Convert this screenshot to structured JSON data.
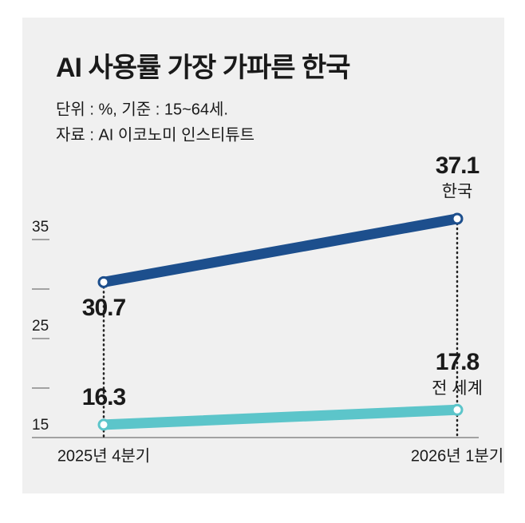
{
  "chart_data": {
    "type": "line",
    "title": "AI 사용률 가장 가파른 한국",
    "subtitle": "단위 : %, 기준 : 15~64세.",
    "source": "자료 : AI 이코노미 인스티튜트",
    "categories": [
      "2025년 4분기",
      "2026년 1분기"
    ],
    "series": [
      {
        "name": "한국",
        "color": "#1d4f8d",
        "values": [
          30.7,
          37.1
        ]
      },
      {
        "name": "전 세계",
        "color": "#5cc5ca",
        "values": [
          16.3,
          17.8
        ]
      }
    ],
    "ylim": [
      15,
      40
    ],
    "yticks": [
      15,
      25,
      35
    ],
    "minor_yticks": [
      20,
      30
    ]
  }
}
